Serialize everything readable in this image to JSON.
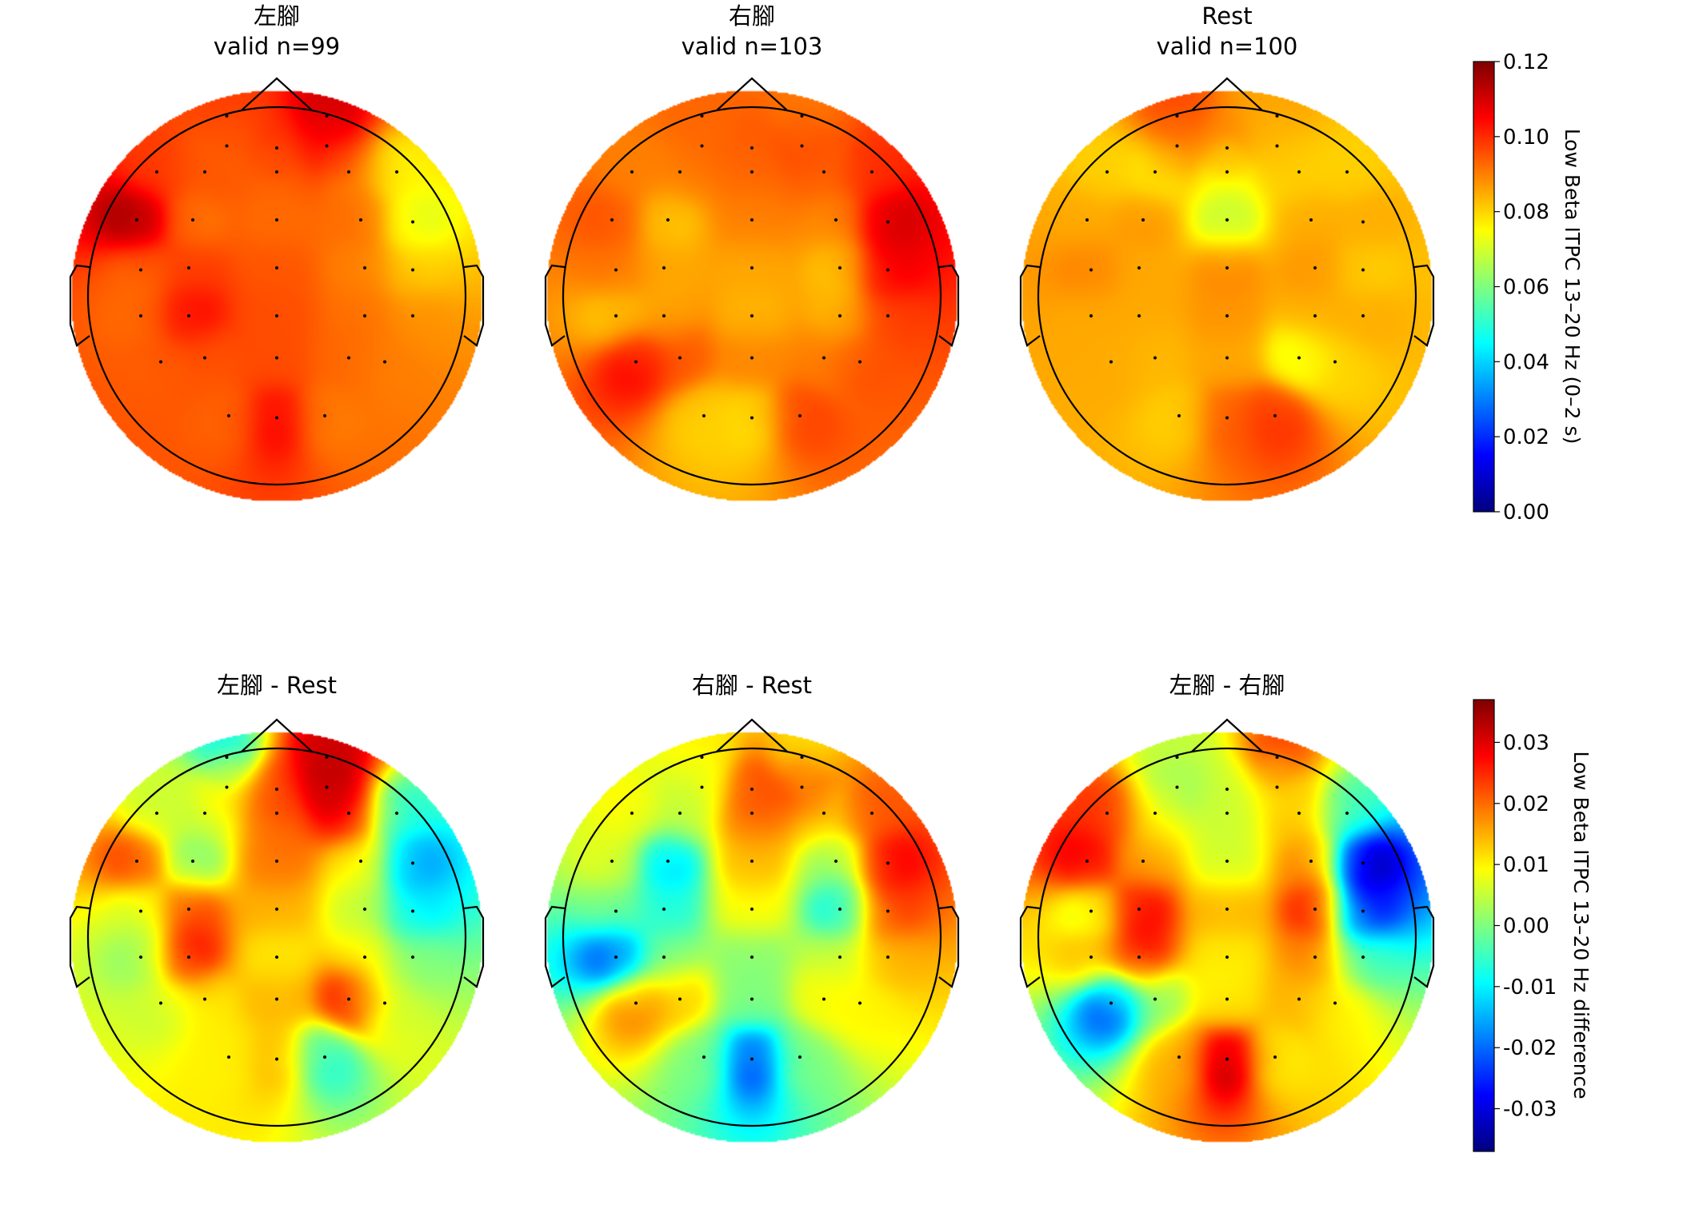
{
  "colormap": [
    "#00007f",
    "#0000ff",
    "#007fff",
    "#00ffff",
    "#7fff7f",
    "#ffff00",
    "#ff7f00",
    "#ff0000",
    "#7f0000"
  ],
  "head": {
    "outline_color": "#000000",
    "sensor_color": "#000000",
    "sensor_positions": [
      [
        -0.25,
        0.9
      ],
      [
        0.25,
        0.9
      ],
      [
        -0.25,
        0.75
      ],
      [
        0.0,
        0.74
      ],
      [
        0.25,
        0.75
      ],
      [
        -0.6,
        0.62
      ],
      [
        -0.36,
        0.62
      ],
      [
        0.0,
        0.62
      ],
      [
        0.36,
        0.62
      ],
      [
        0.6,
        0.62
      ],
      [
        -0.7,
        0.38
      ],
      [
        -0.42,
        0.38
      ],
      [
        0.0,
        0.38
      ],
      [
        0.42,
        0.38
      ],
      [
        0.68,
        0.37
      ],
      [
        -0.68,
        0.13
      ],
      [
        -0.44,
        0.14
      ],
      [
        0.0,
        0.14
      ],
      [
        0.44,
        0.14
      ],
      [
        0.68,
        0.13
      ],
      [
        -0.68,
        -0.1
      ],
      [
        -0.44,
        -0.1
      ],
      [
        0.0,
        -0.1
      ],
      [
        0.44,
        -0.1
      ],
      [
        0.68,
        -0.1
      ],
      [
        -0.58,
        -0.33
      ],
      [
        -0.36,
        -0.31
      ],
      [
        0.0,
        -0.31
      ],
      [
        0.36,
        -0.31
      ],
      [
        0.54,
        -0.33
      ],
      [
        -0.24,
        -0.6
      ],
      [
        0.0,
        -0.61
      ],
      [
        0.24,
        -0.6
      ]
    ]
  },
  "chart_data": [
    {
      "type": "heatmap",
      "title": "左腳",
      "subtitle": "valid n=99",
      "colorbar_group": "top",
      "values": [
        0.098,
        0.112,
        0.093,
        0.1,
        0.105,
        0.098,
        0.095,
        0.092,
        0.09,
        0.075,
        0.118,
        0.09,
        0.092,
        0.093,
        0.07,
        0.092,
        0.098,
        0.095,
        0.09,
        0.08,
        0.092,
        0.106,
        0.096,
        0.092,
        0.088,
        0.094,
        0.095,
        0.096,
        0.093,
        0.09,
        0.093,
        0.106,
        0.09
      ]
    },
    {
      "type": "heatmap",
      "title": "右腳",
      "subtitle": "valid n=103",
      "colorbar_group": "top",
      "values": [
        0.093,
        0.09,
        0.093,
        0.095,
        0.098,
        0.09,
        0.09,
        0.092,
        0.093,
        0.1,
        0.096,
        0.08,
        0.09,
        0.088,
        0.112,
        0.092,
        0.085,
        0.085,
        0.08,
        0.108,
        0.08,
        0.085,
        0.083,
        0.082,
        0.098,
        0.106,
        0.096,
        0.09,
        0.09,
        0.096,
        0.08,
        0.078,
        0.098
      ]
    },
    {
      "type": "heatmap",
      "title": "Rest",
      "subtitle": "valid n=100",
      "colorbar_group": "top",
      "values": [
        0.098,
        0.086,
        0.09,
        0.092,
        0.082,
        0.08,
        0.075,
        0.07,
        0.08,
        0.08,
        0.085,
        0.088,
        0.065,
        0.085,
        0.085,
        0.09,
        0.085,
        0.09,
        0.088,
        0.08,
        0.085,
        0.085,
        0.088,
        0.085,
        0.085,
        0.085,
        0.083,
        0.085,
        0.07,
        0.08,
        0.08,
        0.095,
        0.1
      ]
    }
  ],
  "diff_data": [
    {
      "type": "heatmap",
      "title": "左腳 - Rest",
      "colorbar_group": "bottom",
      "values": [
        -0.012,
        0.032,
        0.015,
        0.025,
        0.035,
        0.005,
        0.005,
        0.02,
        0.03,
        -0.008,
        0.025,
        -0.003,
        0.02,
        0.01,
        -0.018,
        0.005,
        0.025,
        0.015,
        0.005,
        -0.012,
        0.0,
        0.03,
        0.01,
        0.01,
        0.0,
        0.005,
        0.01,
        0.015,
        0.03,
        0.005,
        0.01,
        0.015,
        -0.008
      ]
    },
    {
      "type": "heatmap",
      "title": "右腳 - Rest",
      "colorbar_group": "bottom",
      "values": [
        0.01,
        0.01,
        0.005,
        0.025,
        0.025,
        0.01,
        0.005,
        0.02,
        0.012,
        0.022,
        0.008,
        -0.015,
        0.015,
        0.0,
        0.03,
        0.0,
        -0.008,
        0.01,
        -0.012,
        0.025,
        -0.025,
        0.0,
        0.0,
        0.005,
        0.015,
        0.02,
        0.015,
        0.0,
        0.01,
        0.01,
        0.0,
        -0.025,
        0.0
      ]
    },
    {
      "type": "heatmap",
      "title": "左腳 - 右腳",
      "colorbar_group": "bottom",
      "values": [
        0.005,
        0.025,
        0.0,
        0.005,
        0.01,
        0.025,
        0.01,
        0.005,
        0.015,
        -0.005,
        0.03,
        0.015,
        0.005,
        0.02,
        -0.037,
        0.005,
        0.03,
        0.015,
        0.03,
        -0.03,
        0.015,
        0.03,
        0.01,
        0.02,
        -0.005,
        -0.025,
        0.0,
        0.01,
        0.015,
        0.01,
        0.015,
        0.035,
        0.01
      ]
    }
  ],
  "colorbars": {
    "top": {
      "label": "Low Beta ITPC 13–20 Hz (0–2 s)",
      "vmin": 0.0,
      "vmax": 0.12,
      "ticks": [
        0.0,
        0.02,
        0.04,
        0.06,
        0.08,
        0.1,
        0.12
      ],
      "tick_labels": [
        "0.00",
        "0.02",
        "0.04",
        "0.06",
        "0.08",
        "0.10",
        "0.12"
      ]
    },
    "bottom": {
      "label": "Low Beta ITPC 13–20 Hz difference",
      "vmin": -0.037,
      "vmax": 0.037,
      "ticks": [
        -0.03,
        -0.02,
        -0.01,
        0.0,
        0.01,
        0.02,
        0.03
      ],
      "tick_labels": [
        "-0.03",
        "-0.02",
        "-0.01",
        "0.00",
        "0.01",
        "0.02",
        "0.03"
      ]
    }
  }
}
